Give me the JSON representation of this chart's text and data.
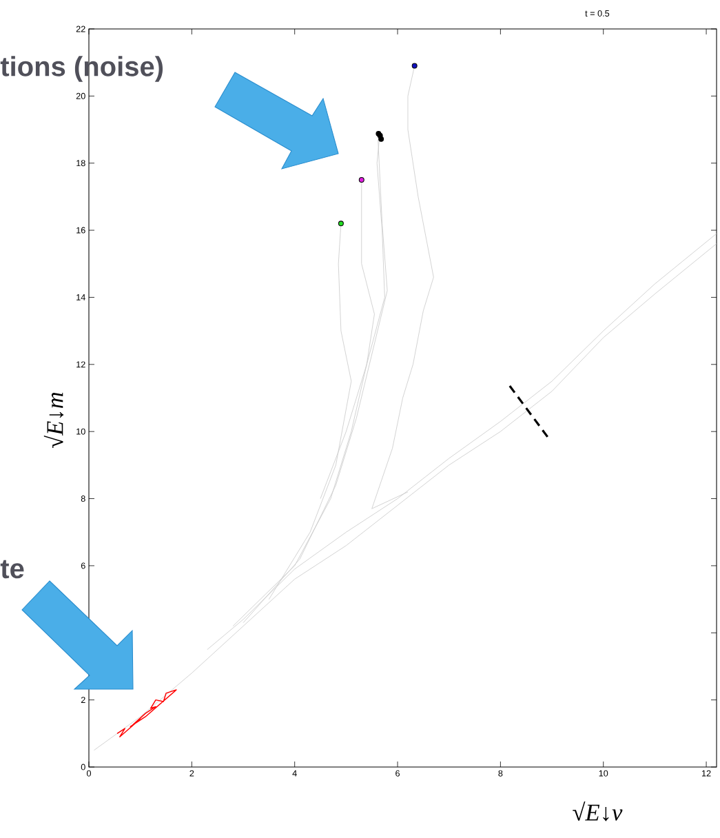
{
  "chart_data": {
    "type": "line",
    "title": "t = 0.5",
    "xlabel": "√E↓v",
    "ylabel": "√E↓m",
    "annotations": [
      "tions (noise)",
      "te"
    ],
    "xlim": [
      0,
      12.2
    ],
    "ylim": [
      0,
      22
    ],
    "xticks": [
      0,
      2,
      4,
      6,
      8,
      10,
      12
    ],
    "yticks": [
      0,
      2,
      {
        "value": 4,
        "label": null
      },
      6,
      8,
      10,
      12,
      14,
      16,
      18,
      20,
      22
    ],
    "series": [
      {
        "color": "#c8c8c8",
        "x": [
          0.1,
          1,
          2,
          3,
          4,
          5,
          6,
          7,
          8,
          9,
          10,
          11,
          12.2
        ],
        "values": [
          0.5,
          1.5,
          2.8,
          4.2,
          5.6,
          6.6,
          7.8,
          9.0,
          10.0,
          11.2,
          12.8,
          14.1,
          15.6
        ]
      },
      {
        "color": "#c8c8c8",
        "x": [
          2.3,
          3,
          4,
          5,
          6,
          7,
          8,
          9,
          10,
          11,
          12.2
        ],
        "values": [
          3.5,
          4.4,
          5.9,
          7.0,
          8.0,
          9.2,
          10.3,
          11.5,
          13.0,
          14.4,
          15.9
        ]
      },
      {
        "color": "#c8c8c8",
        "x": [
          2.8,
          4,
          4.7,
          5.1,
          5.4,
          5.75,
          5.7,
          5.6,
          5.65
        ],
        "values": [
          4.2,
          6.0,
          8.0,
          10.0,
          12.0,
          14.0,
          16.0,
          18.0,
          18.8
        ]
      },
      {
        "color": "#c8c8c8",
        "x": [
          3.0,
          4.1,
          4.8,
          5.2,
          5.5,
          5.8,
          5.7,
          5.62
        ],
        "values": [
          4.3,
          6.2,
          8.4,
          10.4,
          12.3,
          14.2,
          16.2,
          18.7
        ]
      },
      {
        "color": "#c8c8c8",
        "x": [
          3.5,
          4.3,
          4.8,
          5.1,
          4.9,
          4.85,
          4.9
        ],
        "values": [
          5.0,
          7.0,
          9.0,
          11.5,
          13.0,
          15.0,
          16.2
        ]
      },
      {
        "color": "#c8c8c8",
        "x": [
          4.5,
          5.0,
          5.4,
          5.55,
          5.3,
          5.3
        ],
        "values": [
          8.0,
          10.0,
          12.0,
          13.5,
          15.0,
          17.5
        ]
      },
      {
        "color": "#c8c8c8",
        "x": [
          6.2,
          5.5,
          5.9,
          6.1,
          6.3,
          6.5,
          6.7,
          6.4,
          6.2,
          6.2,
          6.33
        ],
        "values": [
          8.2,
          7.7,
          9.5,
          11.0,
          12.0,
          13.6,
          14.6,
          17.0,
          19.0,
          20.0,
          20.9
        ]
      },
      {
        "color": "#ff0000",
        "x": [
          0.55,
          0.7,
          0.6,
          0.9,
          1.0,
          0.85,
          1.1,
          1.3,
          1.2,
          1.3,
          1.45,
          1.5,
          1.7,
          1.4,
          1.1,
          0.8
        ],
        "values": [
          1.0,
          1.15,
          0.9,
          1.3,
          1.45,
          1.25,
          1.6,
          1.8,
          1.75,
          2.0,
          1.95,
          2.2,
          2.3,
          1.9,
          1.5,
          1.2
        ]
      },
      {
        "color": "#000000",
        "line_style": "dashed",
        "x": [
          8.18,
          8.94
        ],
        "values": [
          11.36,
          9.79
        ]
      },
      {
        "type": "scatter",
        "color": "#22dd22",
        "x": [
          4.9
        ],
        "values": [
          16.2
        ]
      },
      {
        "type": "scatter",
        "color": "#e020e0",
        "x": [
          5.3
        ],
        "values": [
          17.5
        ]
      },
      {
        "type": "scatter",
        "color": "#1010c0",
        "x": [
          6.33
        ],
        "values": [
          20.9
        ]
      },
      {
        "type": "scatter",
        "color": "#000000",
        "x": [
          5.63,
          5.68,
          5.66
        ],
        "values": [
          18.88,
          18.72,
          18.82
        ]
      }
    ]
  }
}
